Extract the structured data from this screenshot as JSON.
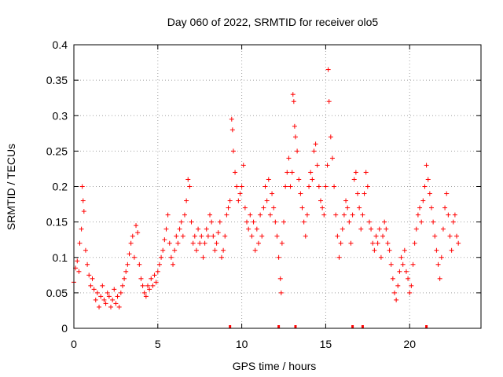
{
  "chart_data": {
    "type": "scatter",
    "title": "Day 060 of 2022, SRMTID for receiver olo5",
    "xlabel": "GPS time / hours",
    "ylabel": "SRMTID / TECUs",
    "xlim": [
      0,
      24.25
    ],
    "ylim": [
      0,
      0.4
    ],
    "x_ticks": [
      {
        "value": 0,
        "label": "0"
      },
      {
        "value": 5,
        "label": "5"
      },
      {
        "value": 10,
        "label": "10"
      },
      {
        "value": 15,
        "label": "15"
      },
      {
        "value": 20,
        "label": "20"
      }
    ],
    "y_ticks": [
      {
        "value": 0,
        "label": "0"
      },
      {
        "value": 0.05,
        "label": "0.05"
      },
      {
        "value": 0.1,
        "label": "0.1"
      },
      {
        "value": 0.15,
        "label": "0.15"
      },
      {
        "value": 0.2,
        "label": "0.2"
      },
      {
        "value": 0.25,
        "label": "0.25"
      },
      {
        "value": 0.3,
        "label": "0.3"
      },
      {
        "value": 0.35,
        "label": "0.35"
      },
      {
        "value": 0.4,
        "label": "0.4"
      }
    ],
    "grid": true,
    "marker": "+",
    "color": "#ff0000",
    "series": [
      {
        "name": "SRMTID",
        "points": [
          [
            0.0,
            0.065
          ],
          [
            0.1,
            0.085
          ],
          [
            0.2,
            0.095
          ],
          [
            0.3,
            0.08
          ],
          [
            0.35,
            0.12
          ],
          [
            0.45,
            0.14
          ],
          [
            0.5,
            0.2
          ],
          [
            0.55,
            0.18
          ],
          [
            0.6,
            0.165
          ],
          [
            0.7,
            0.11
          ],
          [
            0.8,
            0.09
          ],
          [
            0.9,
            0.075
          ],
          [
            1.0,
            0.06
          ],
          [
            1.1,
            0.07
          ],
          [
            1.2,
            0.055
          ],
          [
            1.3,
            0.04
          ],
          [
            1.4,
            0.05
          ],
          [
            1.5,
            0.03
          ],
          [
            1.6,
            0.045
          ],
          [
            1.7,
            0.06
          ],
          [
            1.8,
            0.04
          ],
          [
            1.9,
            0.035
          ],
          [
            2.0,
            0.05
          ],
          [
            2.1,
            0.045
          ],
          [
            2.2,
            0.03
          ],
          [
            2.3,
            0.04
          ],
          [
            2.4,
            0.055
          ],
          [
            2.5,
            0.035
          ],
          [
            2.6,
            0.045
          ],
          [
            2.7,
            0.03
          ],
          [
            2.8,
            0.05
          ],
          [
            2.9,
            0.06
          ],
          [
            3.0,
            0.07
          ],
          [
            3.1,
            0.08
          ],
          [
            3.2,
            0.09
          ],
          [
            3.3,
            0.105
          ],
          [
            3.4,
            0.12
          ],
          [
            3.5,
            0.13
          ],
          [
            3.6,
            0.1
          ],
          [
            3.7,
            0.145
          ],
          [
            3.8,
            0.135
          ],
          [
            3.9,
            0.09
          ],
          [
            4.0,
            0.07
          ],
          [
            4.1,
            0.06
          ],
          [
            4.2,
            0.05
          ],
          [
            4.3,
            0.045
          ],
          [
            4.4,
            0.06
          ],
          [
            4.5,
            0.055
          ],
          [
            4.6,
            0.07
          ],
          [
            4.7,
            0.06
          ],
          [
            4.8,
            0.075
          ],
          [
            4.9,
            0.065
          ],
          [
            5.0,
            0.08
          ],
          [
            5.1,
            0.09
          ],
          [
            5.2,
            0.1
          ],
          [
            5.3,
            0.11
          ],
          [
            5.4,
            0.125
          ],
          [
            5.5,
            0.14
          ],
          [
            5.6,
            0.16
          ],
          [
            5.7,
            0.12
          ],
          [
            5.8,
            0.1
          ],
          [
            5.9,
            0.09
          ],
          [
            6.0,
            0.11
          ],
          [
            6.1,
            0.13
          ],
          [
            6.2,
            0.12
          ],
          [
            6.3,
            0.14
          ],
          [
            6.4,
            0.15
          ],
          [
            6.5,
            0.13
          ],
          [
            6.6,
            0.16
          ],
          [
            6.7,
            0.18
          ],
          [
            6.8,
            0.21
          ],
          [
            6.9,
            0.2
          ],
          [
            7.0,
            0.15
          ],
          [
            7.1,
            0.12
          ],
          [
            7.2,
            0.13
          ],
          [
            7.3,
            0.11
          ],
          [
            7.4,
            0.14
          ],
          [
            7.5,
            0.12
          ],
          [
            7.6,
            0.13
          ],
          [
            7.7,
            0.1
          ],
          [
            7.8,
            0.12
          ],
          [
            7.9,
            0.14
          ],
          [
            8.0,
            0.13
          ],
          [
            8.1,
            0.16
          ],
          [
            8.2,
            0.15
          ],
          [
            8.3,
            0.13
          ],
          [
            8.4,
            0.11
          ],
          [
            8.5,
            0.12
          ],
          [
            8.6,
            0.135
          ],
          [
            8.7,
            0.15
          ],
          [
            8.8,
            0.1
          ],
          [
            8.9,
            0.11
          ],
          [
            9.0,
            0.13
          ],
          [
            9.1,
            0.16
          ],
          [
            9.2,
            0.17
          ],
          [
            9.3,
            0.18
          ],
          [
            9.4,
            0.295
          ],
          [
            9.45,
            0.28
          ],
          [
            9.5,
            0.25
          ],
          [
            9.6,
            0.22
          ],
          [
            9.7,
            0.2
          ],
          [
            9.8,
            0.18
          ],
          [
            9.9,
            0.19
          ],
          [
            10.0,
            0.2
          ],
          [
            10.1,
            0.23
          ],
          [
            10.2,
            0.17
          ],
          [
            10.3,
            0.15
          ],
          [
            10.4,
            0.14
          ],
          [
            10.5,
            0.16
          ],
          [
            10.6,
            0.13
          ],
          [
            10.7,
            0.15
          ],
          [
            10.8,
            0.11
          ],
          [
            10.9,
            0.14
          ],
          [
            11.0,
            0.12
          ],
          [
            11.1,
            0.16
          ],
          [
            11.2,
            0.13
          ],
          [
            11.3,
            0.17
          ],
          [
            11.4,
            0.2
          ],
          [
            11.5,
            0.18
          ],
          [
            11.6,
            0.21
          ],
          [
            11.7,
            0.16
          ],
          [
            11.8,
            0.19
          ],
          [
            11.9,
            0.17
          ],
          [
            12.0,
            0.15
          ],
          [
            12.1,
            0.13
          ],
          [
            12.2,
            0.1
          ],
          [
            12.3,
            0.07
          ],
          [
            12.35,
            0.05
          ],
          [
            12.4,
            0.12
          ],
          [
            12.5,
            0.15
          ],
          [
            12.6,
            0.2
          ],
          [
            12.7,
            0.22
          ],
          [
            12.8,
            0.24
          ],
          [
            12.9,
            0.2
          ],
          [
            13.0,
            0.22
          ],
          [
            13.05,
            0.33
          ],
          [
            13.1,
            0.32
          ],
          [
            13.15,
            0.285
          ],
          [
            13.2,
            0.27
          ],
          [
            13.3,
            0.25
          ],
          [
            13.4,
            0.21
          ],
          [
            13.5,
            0.19
          ],
          [
            13.6,
            0.17
          ],
          [
            13.7,
            0.15
          ],
          [
            13.8,
            0.13
          ],
          [
            13.9,
            0.16
          ],
          [
            14.0,
            0.2
          ],
          [
            14.1,
            0.22
          ],
          [
            14.2,
            0.21
          ],
          [
            14.3,
            0.25
          ],
          [
            14.4,
            0.26
          ],
          [
            14.5,
            0.23
          ],
          [
            14.6,
            0.2
          ],
          [
            14.7,
            0.18
          ],
          [
            14.8,
            0.17
          ],
          [
            14.9,
            0.16
          ],
          [
            15.0,
            0.2
          ],
          [
            15.1,
            0.23
          ],
          [
            15.15,
            0.365
          ],
          [
            15.2,
            0.32
          ],
          [
            15.3,
            0.27
          ],
          [
            15.4,
            0.24
          ],
          [
            15.5,
            0.2
          ],
          [
            15.6,
            0.16
          ],
          [
            15.7,
            0.13
          ],
          [
            15.8,
            0.1
          ],
          [
            15.9,
            0.12
          ],
          [
            16.0,
            0.14
          ],
          [
            16.1,
            0.16
          ],
          [
            16.2,
            0.18
          ],
          [
            16.3,
            0.17
          ],
          [
            16.4,
            0.15
          ],
          [
            16.5,
            0.12
          ],
          [
            16.6,
            0.16
          ],
          [
            16.7,
            0.21
          ],
          [
            16.8,
            0.22
          ],
          [
            16.9,
            0.19
          ],
          [
            17.0,
            0.17
          ],
          [
            17.1,
            0.14
          ],
          [
            17.2,
            0.16
          ],
          [
            17.3,
            0.19
          ],
          [
            17.4,
            0.22
          ],
          [
            17.5,
            0.2
          ],
          [
            17.6,
            0.15
          ],
          [
            17.7,
            0.14
          ],
          [
            17.8,
            0.12
          ],
          [
            17.9,
            0.11
          ],
          [
            18.0,
            0.13
          ],
          [
            18.1,
            0.12
          ],
          [
            18.2,
            0.14
          ],
          [
            18.3,
            0.1
          ],
          [
            18.4,
            0.13
          ],
          [
            18.5,
            0.15
          ],
          [
            18.6,
            0.14
          ],
          [
            18.7,
            0.12
          ],
          [
            18.8,
            0.11
          ],
          [
            18.9,
            0.09
          ],
          [
            19.0,
            0.07
          ],
          [
            19.1,
            0.05
          ],
          [
            19.2,
            0.04
          ],
          [
            19.3,
            0.06
          ],
          [
            19.4,
            0.08
          ],
          [
            19.5,
            0.1
          ],
          [
            19.6,
            0.09
          ],
          [
            19.7,
            0.11
          ],
          [
            19.8,
            0.08
          ],
          [
            19.9,
            0.07
          ],
          [
            20.0,
            0.05
          ],
          [
            20.1,
            0.06
          ],
          [
            20.2,
            0.09
          ],
          [
            20.3,
            0.12
          ],
          [
            20.4,
            0.14
          ],
          [
            20.5,
            0.16
          ],
          [
            20.6,
            0.17
          ],
          [
            20.7,
            0.15
          ],
          [
            20.8,
            0.18
          ],
          [
            20.9,
            0.2
          ],
          [
            21.0,
            0.23
          ],
          [
            21.1,
            0.21
          ],
          [
            21.2,
            0.19
          ],
          [
            21.3,
            0.17
          ],
          [
            21.4,
            0.15
          ],
          [
            21.5,
            0.13
          ],
          [
            21.6,
            0.11
          ],
          [
            21.7,
            0.09
          ],
          [
            21.8,
            0.07
          ],
          [
            21.9,
            0.1
          ],
          [
            22.0,
            0.14
          ],
          [
            22.1,
            0.17
          ],
          [
            22.2,
            0.19
          ],
          [
            22.3,
            0.16
          ],
          [
            22.4,
            0.13
          ],
          [
            22.5,
            0.11
          ],
          [
            22.6,
            0.15
          ],
          [
            22.7,
            0.16
          ],
          [
            22.8,
            0.13
          ],
          [
            22.9,
            0.12
          ]
        ]
      }
    ],
    "rug_marks": [
      9.3,
      12.2,
      13.2,
      16.6,
      17.2,
      21.0
    ]
  }
}
